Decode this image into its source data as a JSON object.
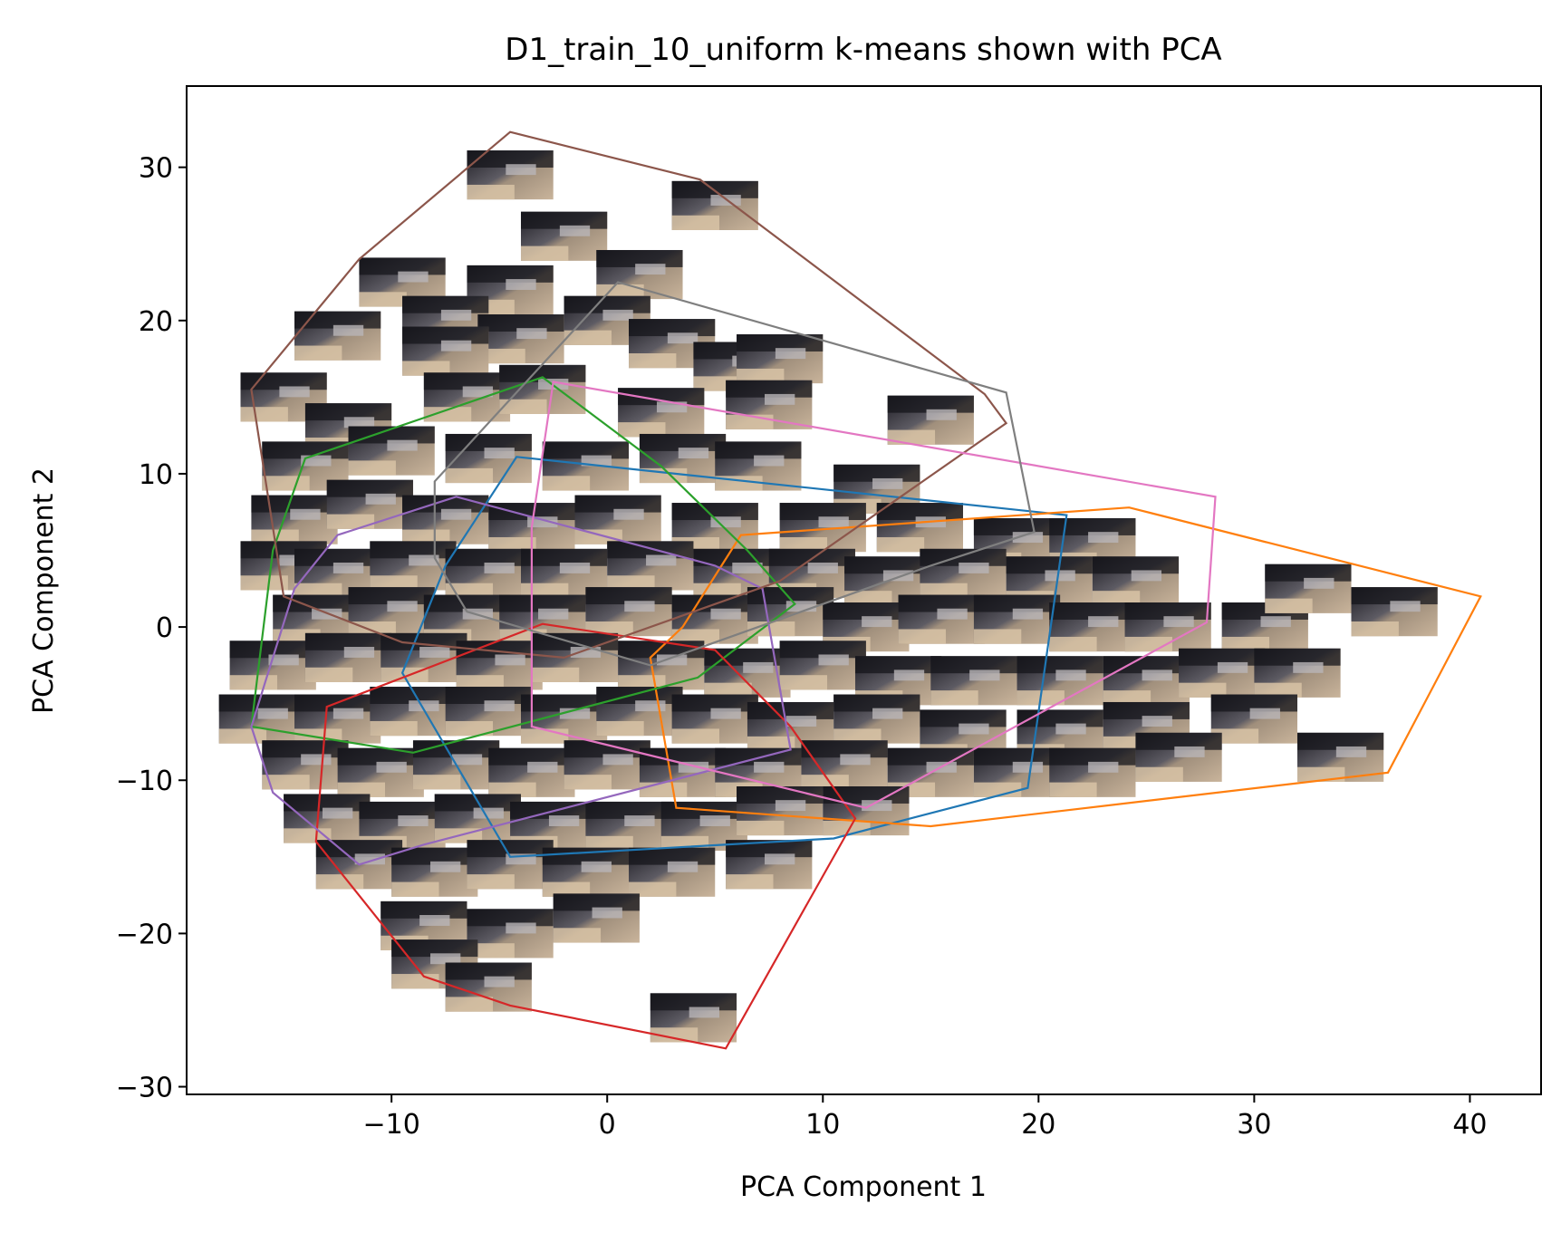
{
  "chart_data": {
    "type": "scatter",
    "title": "D1_train_10_uniform k-means shown with PCA",
    "xlabel": "PCA Component 1",
    "ylabel": "PCA Component 2",
    "xlim": [
      -19.5,
      43.3
    ],
    "ylim": [
      -30.5,
      35.3
    ],
    "xticks": [
      -10,
      0,
      10,
      20,
      30,
      40
    ],
    "yticks": [
      -30,
      -20,
      -10,
      0,
      10,
      20,
      30
    ],
    "xtick_labels": [
      "−10",
      "0",
      "10",
      "20",
      "30",
      "40"
    ],
    "ytick_labels": [
      "−30",
      "−20",
      "−10",
      "0",
      "10",
      "20",
      "30"
    ],
    "grid": false,
    "legend": "none",
    "point_style": "image thumbnails (kitchen frames)",
    "thumbnail_size": [
      4,
      3.2
    ],
    "cluster_hulls": [
      {
        "color": "#1f77b4",
        "points": [
          [
            -4.2,
            11.1
          ],
          [
            21.3,
            7.3
          ],
          [
            19.5,
            -10.5
          ],
          [
            10.5,
            -13.8
          ],
          [
            -4.5,
            -15
          ],
          [
            -9.5,
            -3
          ],
          [
            -7.5,
            4
          ]
        ]
      },
      {
        "color": "#ff7f0e",
        "points": [
          [
            6.2,
            6
          ],
          [
            24.2,
            7.8
          ],
          [
            40.5,
            2
          ],
          [
            36.2,
            -9.5
          ],
          [
            15,
            -13
          ],
          [
            3.2,
            -11.8
          ],
          [
            2,
            -2
          ],
          [
            3.5,
            0
          ]
        ]
      },
      {
        "color": "#2ca02c",
        "points": [
          [
            -3,
            16.3
          ],
          [
            -14,
            11
          ],
          [
            -15.5,
            5
          ],
          [
            -16.5,
            -6.5
          ],
          [
            -9,
            -8.2
          ],
          [
            4.2,
            -3.3
          ],
          [
            8.7,
            1.5
          ],
          [
            6.5,
            5
          ],
          [
            2.5,
            10.5
          ]
        ]
      },
      {
        "color": "#d62728",
        "points": [
          [
            -3,
            0.2
          ],
          [
            5,
            -1.5
          ],
          [
            8.5,
            -6.5
          ],
          [
            11.5,
            -12.5
          ],
          [
            5.5,
            -27.5
          ],
          [
            -4.5,
            -24.7
          ],
          [
            -8.5,
            -22.8
          ],
          [
            -13.5,
            -14
          ],
          [
            -13,
            -5.2
          ]
        ]
      },
      {
        "color": "#9467bd",
        "points": [
          [
            -7,
            8.5
          ],
          [
            -12.5,
            6
          ],
          [
            -14.5,
            2.5
          ],
          [
            -16.5,
            -6.5
          ],
          [
            -15.5,
            -10.8
          ],
          [
            -11.5,
            -15.5
          ],
          [
            -8.5,
            -14.2
          ],
          [
            8.5,
            -8
          ],
          [
            7.2,
            2.5
          ],
          [
            5,
            4
          ]
        ]
      },
      {
        "color": "#8c564b",
        "points": [
          [
            -4.5,
            32.3
          ],
          [
            4.3,
            29.2
          ],
          [
            17.5,
            15.2
          ],
          [
            18.5,
            13.3
          ],
          [
            8,
            3
          ],
          [
            -2,
            -2
          ],
          [
            -9.5,
            -1
          ],
          [
            -15,
            2
          ],
          [
            -16.5,
            15.5
          ],
          [
            -11.5,
            24
          ]
        ]
      },
      {
        "color": "#e377c2",
        "points": [
          [
            -2.5,
            16
          ],
          [
            28.2,
            8.5
          ],
          [
            27.8,
            0.3
          ],
          [
            12,
            -11.8
          ],
          [
            -3.5,
            -6.5
          ],
          [
            -3.5,
            6.5
          ]
        ]
      },
      {
        "color": "#7f7f7f",
        "points": [
          [
            0.5,
            22.5
          ],
          [
            18.5,
            15.3
          ],
          [
            19.8,
            6.2
          ],
          [
            15,
            4
          ],
          [
            2,
            -2.5
          ],
          [
            -6.5,
            1
          ],
          [
            -8,
            4.5
          ],
          [
            -8,
            9.5
          ]
        ]
      }
    ],
    "image_points": [
      [
        -4.5,
        29.5
      ],
      [
        -2,
        25.5
      ],
      [
        5,
        27.5
      ],
      [
        1.5,
        23
      ],
      [
        -9.5,
        22.5
      ],
      [
        -4.5,
        22
      ],
      [
        -7.5,
        20
      ],
      [
        -12.5,
        19
      ],
      [
        -4,
        18.8
      ],
      [
        0,
        20
      ],
      [
        -7.5,
        18
      ],
      [
        3,
        18.5
      ],
      [
        6,
        17
      ],
      [
        8,
        17.5
      ],
      [
        -15,
        15
      ],
      [
        -12,
        13
      ],
      [
        -6.5,
        15
      ],
      [
        -3,
        15.5
      ],
      [
        2.5,
        14
      ],
      [
        7.5,
        14.5
      ],
      [
        15,
        13.5
      ],
      [
        -14,
        10.5
      ],
      [
        -10,
        11.5
      ],
      [
        -5.5,
        11
      ],
      [
        -1,
        10.5
      ],
      [
        3.5,
        11
      ],
      [
        7,
        10.5
      ],
      [
        12.5,
        9
      ],
      [
        -14.5,
        7
      ],
      [
        -11,
        8
      ],
      [
        -7.5,
        7
      ],
      [
        -3.5,
        6.5
      ],
      [
        0.5,
        7
      ],
      [
        5,
        6.5
      ],
      [
        10,
        6.5
      ],
      [
        14.5,
        6.5
      ],
      [
        19,
        5.5
      ],
      [
        22.5,
        5.5
      ],
      [
        -15,
        4
      ],
      [
        -12.5,
        3.5
      ],
      [
        -9,
        4
      ],
      [
        -5.5,
        3.5
      ],
      [
        -2,
        3.5
      ],
      [
        2,
        4
      ],
      [
        6,
        3.5
      ],
      [
        9.5,
        3.5
      ],
      [
        13,
        3
      ],
      [
        16.5,
        3.5
      ],
      [
        20.5,
        3
      ],
      [
        24.5,
        3
      ],
      [
        -13.5,
        0.5
      ],
      [
        -10,
        1
      ],
      [
        -6.5,
        0.5
      ],
      [
        -3,
        0.5
      ],
      [
        1,
        1
      ],
      [
        5,
        0.5
      ],
      [
        8.5,
        1
      ],
      [
        12,
        0
      ],
      [
        15.5,
        0.5
      ],
      [
        19,
        0.5
      ],
      [
        22.5,
        0
      ],
      [
        26,
        0
      ],
      [
        30.5,
        0
      ],
      [
        32.5,
        2.5
      ],
      [
        36.5,
        1
      ],
      [
        -15.5,
        -2.5
      ],
      [
        -12,
        -2
      ],
      [
        -8.5,
        -2
      ],
      [
        -5,
        -2.5
      ],
      [
        -1.5,
        -2
      ],
      [
        2.5,
        -2.5
      ],
      [
        6.5,
        -3
      ],
      [
        10,
        -2.5
      ],
      [
        13.5,
        -3.5
      ],
      [
        17,
        -3.5
      ],
      [
        21,
        -3.5
      ],
      [
        25,
        -3.5
      ],
      [
        28.5,
        -3
      ],
      [
        32,
        -3
      ],
      [
        -16,
        -6
      ],
      [
        -12.5,
        -6
      ],
      [
        -9,
        -5.5
      ],
      [
        -5.5,
        -5.5
      ],
      [
        -2,
        -6
      ],
      [
        1.5,
        -5.5
      ],
      [
        5,
        -6
      ],
      [
        8.5,
        -6.5
      ],
      [
        12.5,
        -6
      ],
      [
        16.5,
        -7
      ],
      [
        21,
        -7
      ],
      [
        25,
        -6.5
      ],
      [
        30,
        -6
      ],
      [
        -14,
        -9
      ],
      [
        -10.5,
        -9.5
      ],
      [
        -7,
        -9
      ],
      [
        -3.5,
        -9.5
      ],
      [
        0,
        -9
      ],
      [
        3.5,
        -9.5
      ],
      [
        7,
        -9.5
      ],
      [
        11,
        -9
      ],
      [
        15,
        -9.5
      ],
      [
        19,
        -9.5
      ],
      [
        22.5,
        -9.5
      ],
      [
        26.5,
        -8.5
      ],
      [
        34,
        -8.5
      ],
      [
        -13,
        -12.5
      ],
      [
        -9.5,
        -13
      ],
      [
        -6,
        -12.5
      ],
      [
        -2.5,
        -13
      ],
      [
        1,
        -13
      ],
      [
        4.5,
        -13
      ],
      [
        8,
        -12
      ],
      [
        12,
        -12
      ],
      [
        -11.5,
        -15.5
      ],
      [
        -8,
        -16
      ],
      [
        -4.5,
        -15.5
      ],
      [
        -1,
        -16
      ],
      [
        3,
        -16
      ],
      [
        7.5,
        -15.5
      ],
      [
        -8.5,
        -19.5
      ],
      [
        -4.5,
        -20
      ],
      [
        -0.5,
        -19
      ],
      [
        -8,
        -22
      ],
      [
        -5.5,
        -23.5
      ],
      [
        4,
        -25.5
      ]
    ],
    "series": []
  }
}
